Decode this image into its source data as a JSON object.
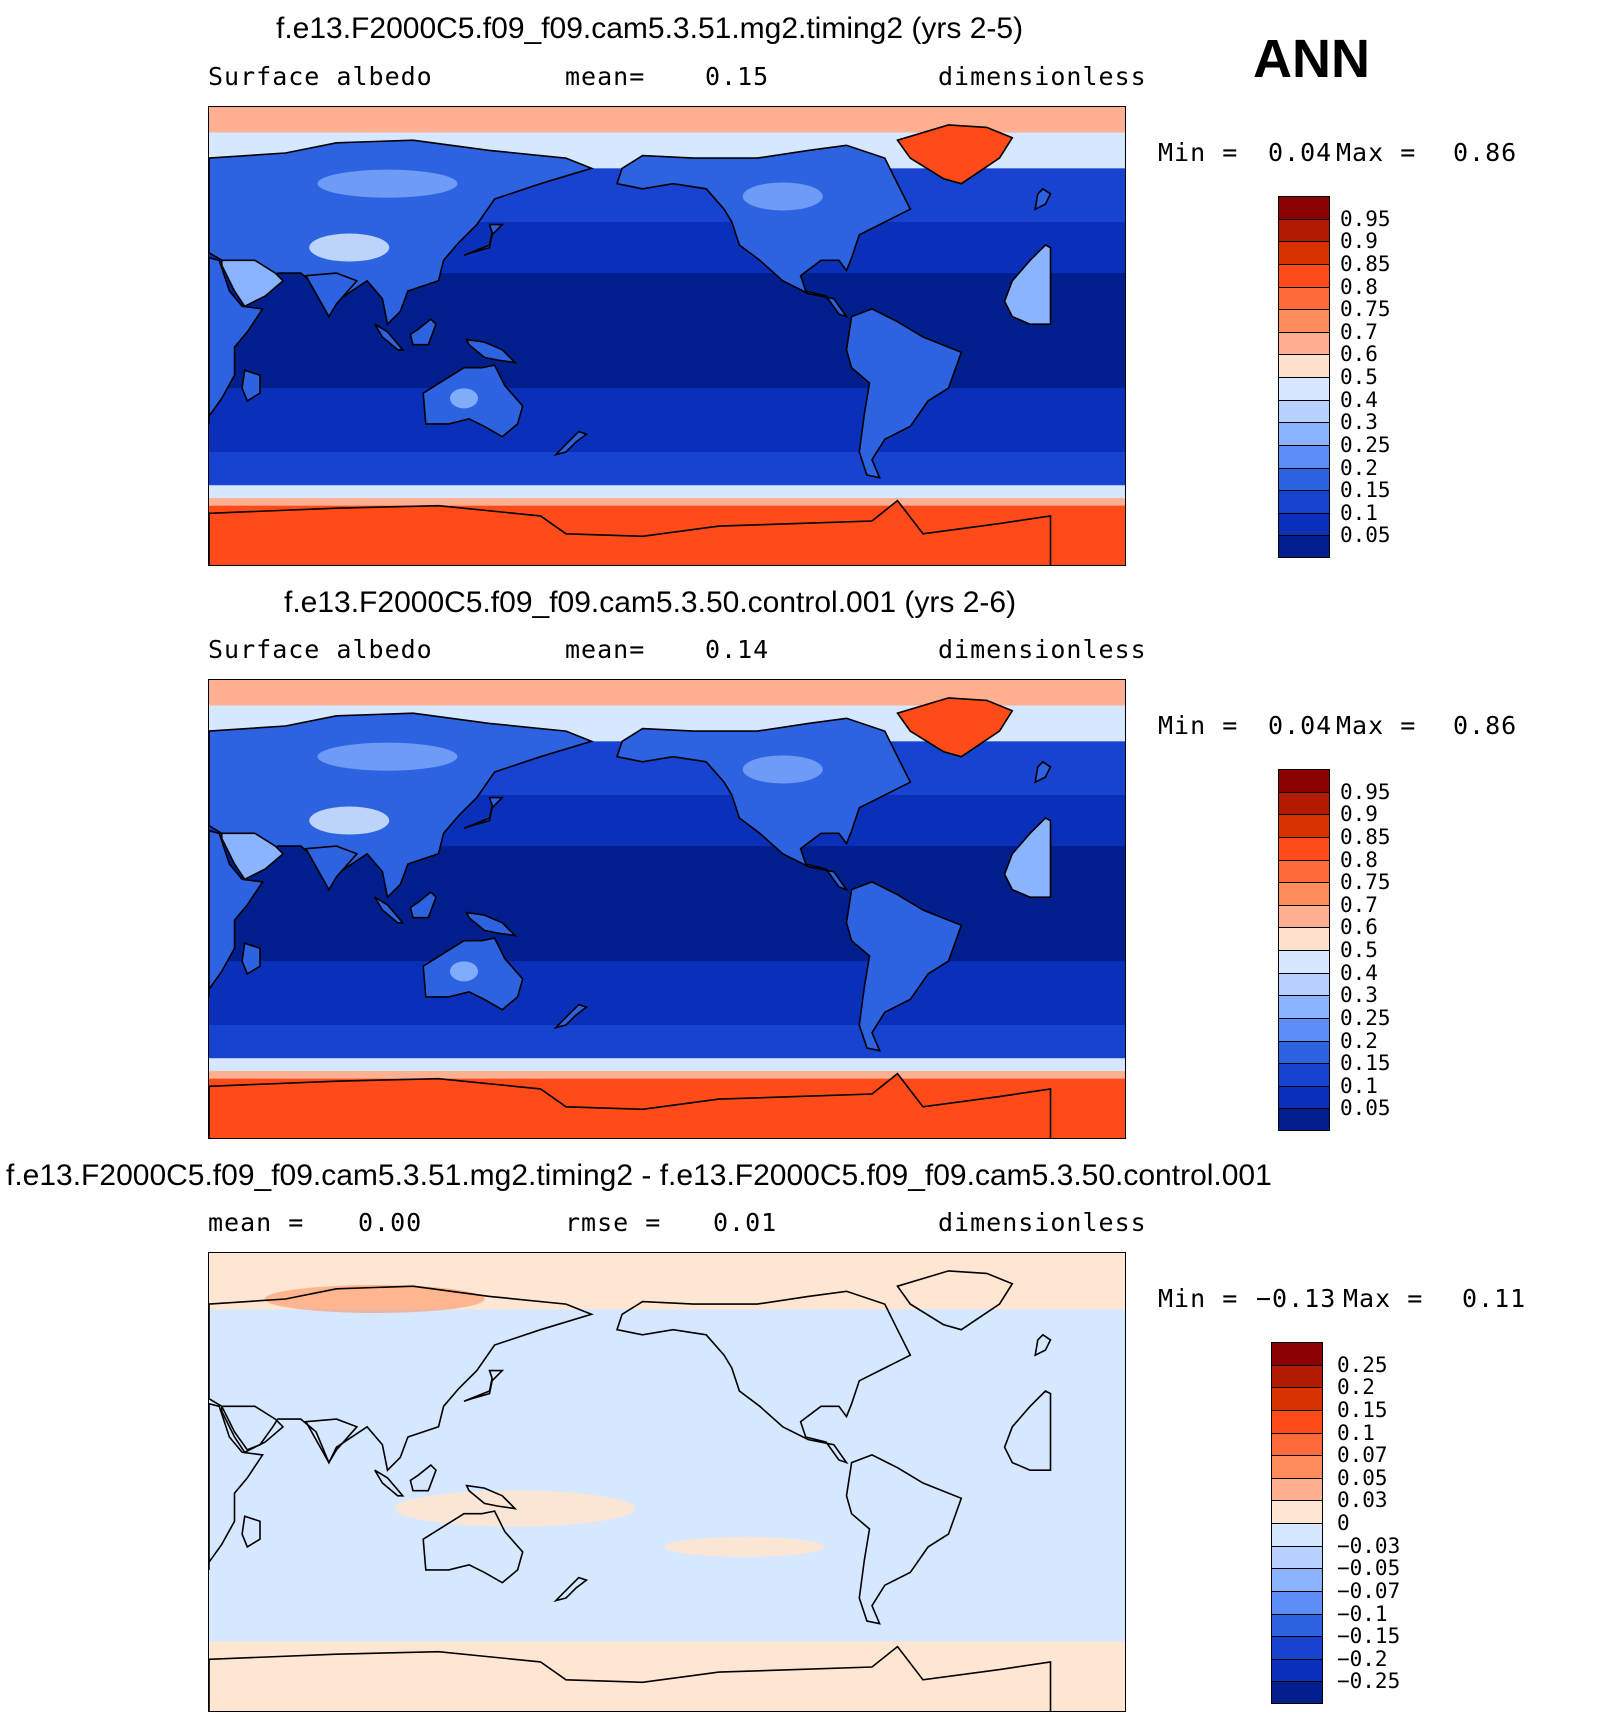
{
  "season": "ANN",
  "panels": [
    {
      "title": "f.e13.F2000C5.f09_f09.cam5.3.51.mg2.timing2 (yrs 2-5)",
      "left_label": "Surface albedo",
      "mid_label": "mean=",
      "mid_value": "0.15",
      "units": "dimensionless",
      "min_label": "Min =",
      "min_value": "0.04",
      "max_label": "Max =",
      "max_value": "0.86",
      "kind": "abs"
    },
    {
      "title": "f.e13.F2000C5.f09_f09.cam5.3.50.control.001 (yrs 2-6)",
      "left_label": "Surface albedo",
      "mid_label": "mean=",
      "mid_value": "0.14",
      "units": "dimensionless",
      "min_label": "Min =",
      "min_value": "0.04",
      "max_label": "Max =",
      "max_value": "0.86",
      "kind": "abs"
    },
    {
      "title": "f.e13.F2000C5.f09_f09.cam5.3.51.mg2.timing2 - f.e13.F2000C5.f09_f09.cam5.3.50.control.001",
      "left_label": "mean =",
      "left_value": "0.00",
      "mid_label": "rmse =",
      "mid_value": "0.01",
      "units": "dimensionless",
      "min_label": "Min =",
      "min_value": "−0.13",
      "max_label": "Max =",
      "max_value": "0.11",
      "kind": "diff"
    }
  ],
  "colorbars": {
    "abs": {
      "labels": [
        "0.95",
        "0.9",
        "0.85",
        "0.8",
        "0.75",
        "0.7",
        "0.6",
        "0.5",
        "0.4",
        "0.3",
        "0.25",
        "0.2",
        "0.15",
        "0.1",
        "0.05"
      ],
      "colors": [
        "#8b0000",
        "#b31b00",
        "#d83200",
        "#ff4b1a",
        "#ff6a3a",
        "#ff8c5a",
        "#ffb090",
        "#ffe0cc",
        "#d6e8ff",
        "#b8d2ff",
        "#8ab4ff",
        "#5c8ef5",
        "#2d63e0",
        "#1842d0",
        "#0a2fb8",
        "#001e8c"
      ]
    },
    "diff": {
      "labels": [
        "0.25",
        "0.2",
        "0.15",
        "0.1",
        "0.07",
        "0.05",
        "0.03",
        "0",
        "−0.03",
        "−0.05",
        "−0.07",
        "−0.1",
        "−0.15",
        "−0.2",
        "−0.25"
      ],
      "colors": [
        "#8b0000",
        "#b31b00",
        "#d83200",
        "#ff4b1a",
        "#ff6a3a",
        "#ff8c5a",
        "#ffb090",
        "#ffe6d2",
        "#d6e8ff",
        "#b8d2ff",
        "#8ab4ff",
        "#5c8ef5",
        "#2d63e0",
        "#1842d0",
        "#0a2fb8",
        "#001e8c"
      ]
    }
  },
  "map_colors": {
    "abs_ocean_deep": "#001e8c",
    "abs_ocean": "#0a2fb8",
    "abs_ocean_mid": "#1842d0",
    "abs_land": "#2d63e0",
    "abs_land_light": "#8ab4ff",
    "abs_land_pale": "#d6e8ff",
    "abs_sea_ice": "#ffb090",
    "abs_ice_sheet": "#ff4b1a",
    "diff_base": "#d6e8ff",
    "diff_pos": "#ffe6d2",
    "diff_pos2": "#ff8c5a"
  }
}
